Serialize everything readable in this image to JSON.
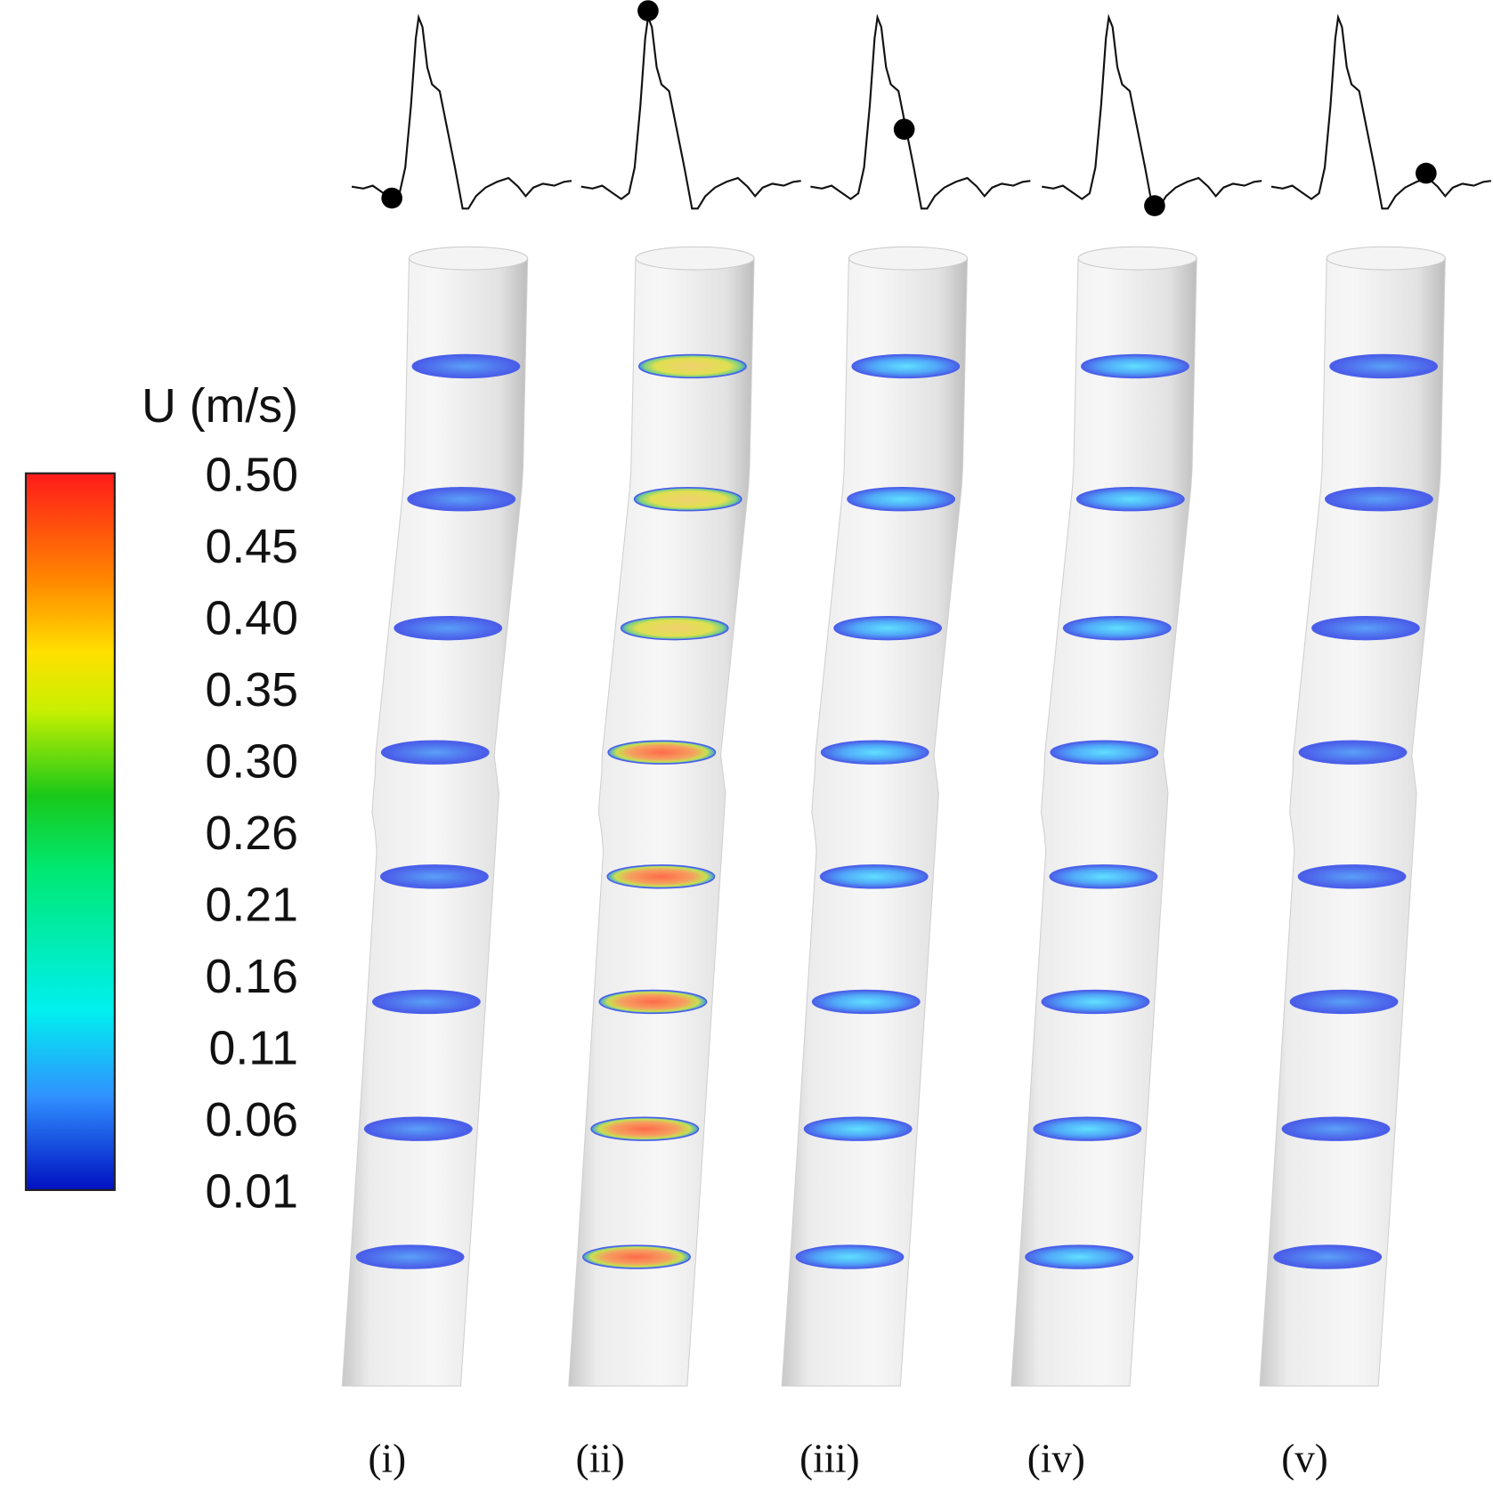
{
  "colorbar": {
    "title": "U (m/s)",
    "labels": [
      "0.50",
      "0.45",
      "0.40",
      "0.35",
      "0.30",
      "0.26",
      "0.21",
      "0.16",
      "0.11",
      "0.06",
      "0.01"
    ]
  },
  "panels": [
    {
      "label": "(i)"
    },
    {
      "label": "(ii)"
    },
    {
      "label": "(iii)"
    },
    {
      "label": "(iv)"
    },
    {
      "label": "(v)"
    }
  ]
}
